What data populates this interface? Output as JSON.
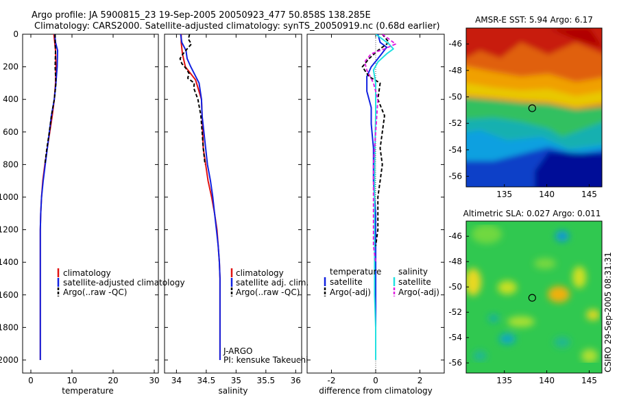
{
  "header": {
    "line1": "Argo profile: JA 5900815_23 19-Sep-2005 20050923_477 50.858S 138.285E",
    "line2": "Climatology: CARS2000. Satellite-adjusted climatology: synTS_20050919.nc (0.68d earlier)"
  },
  "side_label": "CSIRO 29-Sep-2005 08:31:31",
  "colors": {
    "climatology": "#e01010",
    "satellite": "#1020e0",
    "argo": "#000000",
    "salinity_sat": "#20e0e0",
    "salinity_argo": "#e020e0"
  },
  "chart_data": [
    {
      "type": "line",
      "name": "temperature-panel",
      "xlabel": "temperature",
      "ylabel": "",
      "xlim": [
        -2,
        31
      ],
      "ylim": [
        2080,
        0
      ],
      "xticks": [
        "0",
        "10",
        "20",
        "30"
      ],
      "xtick_values": [
        0,
        10,
        20,
        30
      ],
      "yticks": [
        "0",
        "200",
        "400",
        "600",
        "800",
        "1000",
        "1200",
        "1400",
        "1600",
        "1800",
        "2000"
      ],
      "ytick_values": [
        0,
        200,
        400,
        600,
        800,
        1000,
        1200,
        1400,
        1600,
        1800,
        2000
      ],
      "legend": [
        "climatology",
        "satellite-adjusted climatology",
        "Argo(..raw -QC)"
      ],
      "series": [
        {
          "name": "climatology",
          "x": [
            5.6,
            5.8,
            6.0,
            6.1,
            6.0,
            5.7,
            5.2,
            4.6,
            4.0,
            3.4,
            2.9,
            2.6,
            2.4,
            2.3,
            2.3,
            2.3,
            2.3
          ],
          "y": [
            0,
            50,
            100,
            200,
            300,
            400,
            500,
            600,
            700,
            800,
            900,
            1000,
            1100,
            1200,
            1500,
            1800,
            2000
          ]
        },
        {
          "name": "satellite",
          "x": [
            5.8,
            6.0,
            6.5,
            6.4,
            6.1,
            5.7,
            5.0,
            4.5,
            4.0,
            3.5,
            3.0,
            2.6,
            2.4,
            2.3,
            2.3,
            2.3,
            2.3
          ],
          "y": [
            0,
            50,
            100,
            200,
            300,
            400,
            500,
            600,
            700,
            800,
            900,
            1000,
            1100,
            1200,
            1500,
            1800,
            2000
          ]
        },
        {
          "name": "argo",
          "x": [
            5.9,
            5.9,
            6.0,
            5.9,
            6.1,
            5.7,
            5.0,
            4.5,
            3.9,
            3.4
          ],
          "y": [
            0,
            50,
            100,
            200,
            300,
            400,
            500,
            600,
            700,
            800
          ]
        }
      ]
    },
    {
      "type": "line",
      "name": "salinity-panel",
      "xlabel": "salinity",
      "ylabel": "",
      "xlim": [
        33.8,
        36.1
      ],
      "ylim": [
        2080,
        0
      ],
      "xticks": [
        "34",
        "34.5",
        "35",
        "35.5",
        "36"
      ],
      "xtick_values": [
        34,
        34.5,
        35,
        35.5,
        36
      ],
      "legend": [
        "climatology",
        "satellite adj. clim.",
        "Argo(..raw -QC)"
      ],
      "annotations": [
        "J-ARGO",
        "PI: kensuke Takeuchi"
      ],
      "series": [
        {
          "name": "climatology",
          "x": [
            34.08,
            34.08,
            34.1,
            34.15,
            34.32,
            34.42,
            34.43,
            34.44,
            34.45,
            34.49,
            34.53,
            34.59,
            34.64,
            34.68,
            34.7,
            34.72,
            34.73,
            34.73,
            34.73
          ],
          "y": [
            0,
            50,
            120,
            200,
            280,
            400,
            500,
            600,
            700,
            800,
            900,
            1000,
            1100,
            1200,
            1300,
            1400,
            1500,
            1800,
            2000
          ]
        },
        {
          "name": "satellite",
          "x": [
            34.07,
            34.09,
            34.16,
            34.18,
            34.24,
            34.38,
            34.42,
            34.43,
            34.46,
            34.49,
            34.52,
            34.57,
            34.61,
            34.64,
            34.67,
            34.7,
            34.72,
            34.73,
            34.73,
            34.73
          ],
          "y": [
            0,
            50,
            100,
            150,
            200,
            300,
            400,
            500,
            600,
            700,
            800,
            900,
            1000,
            1100,
            1200,
            1300,
            1400,
            1500,
            1800,
            2000
          ]
        },
        {
          "name": "argo",
          "x": [
            34.22,
            34.2,
            34.25,
            34.18,
            34.11,
            34.06,
            34.09,
            34.16,
            34.21,
            34.19,
            34.3,
            34.29,
            34.36,
            34.41,
            34.43,
            34.45,
            34.48
          ],
          "y": [
            0,
            30,
            60,
            90,
            120,
            150,
            180,
            210,
            240,
            270,
            300,
            330,
            400,
            500,
            600,
            700,
            800
          ]
        }
      ]
    },
    {
      "type": "line",
      "name": "difference-panel",
      "xlabel": "difference from climatology",
      "ylabel": "",
      "xlim": [
        -3.1,
        3.1
      ],
      "ylim": [
        2080,
        0
      ],
      "xticks": [
        "-2",
        "0",
        "2"
      ],
      "xtick_values": [
        -2,
        0,
        2
      ],
      "legend_temperature": {
        "title": "temperature",
        "items": [
          "satellite",
          "Argo(-adj)"
        ]
      },
      "legend_salinity": {
        "title": "salinity",
        "items": [
          "satellite",
          "Argo(-adj)"
        ]
      },
      "series": [
        {
          "name": "temperature-satellite",
          "x": [
            0.1,
            0.2,
            0.5,
            0.1,
            -0.2,
            -0.4,
            -0.4,
            -0.2,
            -0.2,
            -0.1,
            -0.1,
            0,
            0,
            0,
            0,
            0,
            0
          ],
          "y": [
            0,
            50,
            80,
            150,
            200,
            260,
            350,
            450,
            550,
            700,
            900,
            1100,
            1200,
            1400,
            1600,
            1800,
            2000
          ]
        },
        {
          "name": "temperature-argo",
          "x": [
            0.3,
            0.6,
            0.1,
            -0.3,
            -0.6,
            -0.3,
            0.2,
            0.1,
            0.4,
            0.3,
            0.2,
            0.3,
            0.2,
            0.1,
            0.1,
            0.1,
            0
          ],
          "y": [
            0,
            50,
            100,
            150,
            200,
            260,
            300,
            400,
            500,
            600,
            700,
            800,
            900,
            1000,
            1100,
            1200,
            1300
          ]
        },
        {
          "name": "salinity-satellite",
          "x": [
            0,
            0.3,
            0.6,
            0.8,
            0.5,
            0.1,
            -0.1,
            0,
            0,
            -0.05,
            -0.05,
            -0.05,
            -0.05,
            0,
            0
          ],
          "y": [
            0,
            30,
            60,
            90,
            120,
            170,
            220,
            300,
            500,
            800,
            1100,
            1300,
            1600,
            1800,
            2000
          ]
        },
        {
          "name": "salinity-argo",
          "x": [
            0.3,
            0.6,
            0.9,
            0.4,
            -0.2,
            -0.5,
            -0.4,
            -0.1,
            0.1,
            0.0,
            -0.1,
            -0.1,
            -0.1,
            0
          ],
          "y": [
            0,
            30,
            60,
            90,
            120,
            170,
            220,
            300,
            400,
            600,
            800,
            1100,
            1300,
            1400
          ]
        }
      ]
    },
    {
      "type": "heatmap",
      "name": "sst-map",
      "title": "AMSR-E SST: 5.94 Argo: 6.17",
      "xlim": [
        130.5,
        146.5
      ],
      "ylim": [
        -56.8,
        -44.8
      ],
      "xticks": [
        "135",
        "140",
        "145"
      ],
      "xtick_values": [
        135,
        140,
        145
      ],
      "yticks": [
        "-46",
        "-48",
        "-50",
        "-52",
        "-54",
        "-56"
      ],
      "ytick_values": [
        -46,
        -48,
        -50,
        -52,
        -54,
        -56
      ],
      "marker": {
        "lon": 138.285,
        "lat": -50.858
      }
    },
    {
      "type": "heatmap",
      "name": "sla-map",
      "title": "Altimetric SLA: 0.027 Argo: 0.011",
      "xlim": [
        130.5,
        146.5
      ],
      "ylim": [
        -56.8,
        -44.8
      ],
      "xticks": [
        "135",
        "140",
        "145"
      ],
      "xtick_values": [
        135,
        140,
        145
      ],
      "yticks": [
        "-46",
        "-48",
        "-50",
        "-52",
        "-54",
        "-56"
      ],
      "ytick_values": [
        -46,
        -48,
        -50,
        -52,
        -54,
        -56
      ],
      "marker": {
        "lon": 138.285,
        "lat": -50.858
      }
    }
  ]
}
